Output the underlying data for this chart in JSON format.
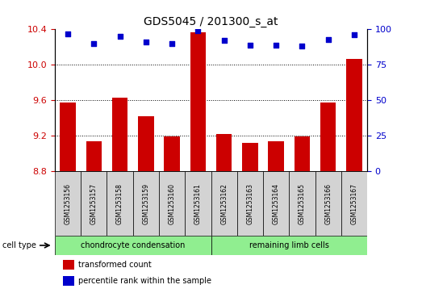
{
  "title": "GDS5045 / 201300_s_at",
  "samples": [
    "GSM1253156",
    "GSM1253157",
    "GSM1253158",
    "GSM1253159",
    "GSM1253160",
    "GSM1253161",
    "GSM1253162",
    "GSM1253163",
    "GSM1253164",
    "GSM1253165",
    "GSM1253166",
    "GSM1253167"
  ],
  "bar_values": [
    9.58,
    9.14,
    9.63,
    9.42,
    9.19,
    10.37,
    9.22,
    9.12,
    9.14,
    9.19,
    9.58,
    10.07
  ],
  "dot_values": [
    97,
    90,
    95,
    91,
    90,
    99,
    92,
    89,
    89,
    88,
    93,
    96
  ],
  "ylim_left": [
    8.8,
    10.4
  ],
  "ylim_right": [
    0,
    100
  ],
  "yticks_left": [
    8.8,
    9.2,
    9.6,
    10.0,
    10.4
  ],
  "yticks_right": [
    0,
    25,
    50,
    75,
    100
  ],
  "bar_color": "#cc0000",
  "dot_color": "#0000cc",
  "bg_color": "#ffffff",
  "grid_yticks": [
    9.2,
    9.6,
    10.0
  ],
  "cell_type_groups": [
    {
      "label": "chondrocyte condensation",
      "start": 0,
      "end": 6,
      "color": "#90ee90"
    },
    {
      "label": "remaining limb cells",
      "start": 6,
      "end": 12,
      "color": "#90ee90"
    }
  ],
  "cell_type_label": "cell type",
  "legend_items": [
    {
      "color": "#cc0000",
      "label": "transformed count"
    },
    {
      "color": "#0000cc",
      "label": "percentile rank within the sample"
    }
  ],
  "sample_bg_color": "#d3d3d3",
  "bar_width": 0.6,
  "title_fontsize": 10,
  "tick_fontsize": 8,
  "label_fontsize": 7
}
